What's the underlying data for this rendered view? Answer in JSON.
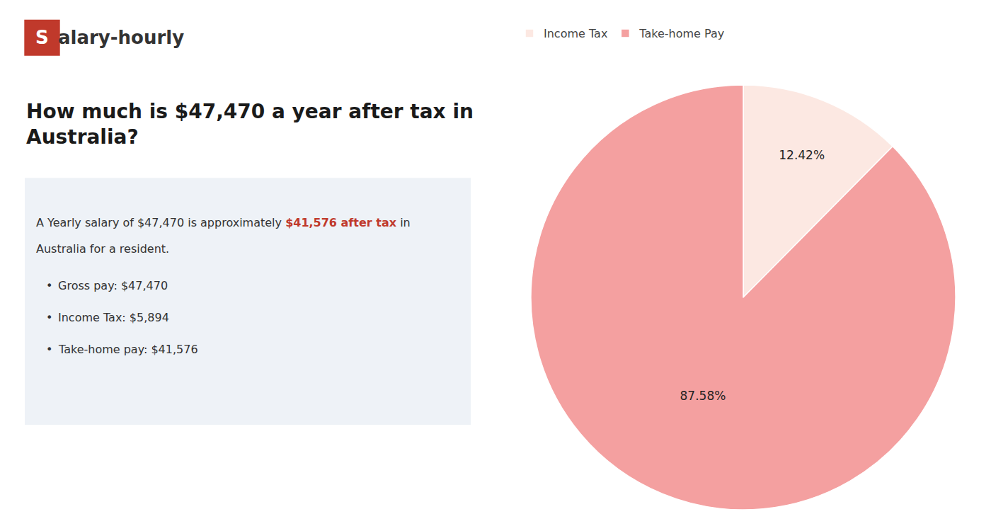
{
  "chart_data": {
    "type": "pie",
    "title": "How much is $47,470 a year after tax in\nAustralia?",
    "categories": [
      "Income Tax",
      "Take-home Pay"
    ],
    "values": [
      12.42,
      87.58
    ],
    "value_labels": [
      "12.42%",
      "87.58%"
    ],
    "data_labels": true,
    "colors": [
      "#fce8e2",
      "#f4a0a0"
    ],
    "legend": "upper left",
    "annotations": [
      {
        "text": "S",
        "color": "#c0392b"
      },
      {
        "text": "alary-hourly"
      },
      {
        "text": "A Yearly salary of $47,470 is approximately "
      },
      {
        "text": "$41,576 after tax",
        "color": "#c0392b"
      },
      {
        "text": " in"
      },
      {
        "text": "Australia for a resident."
      },
      {
        "text": "•"
      },
      {
        "text": "Gross pay: $47,470"
      },
      {
        "text": "•"
      },
      {
        "text": "Income Tax: $5,894"
      },
      {
        "text": "•"
      },
      {
        "text": "Take-home pay: $41,576"
      }
    ]
  }
}
